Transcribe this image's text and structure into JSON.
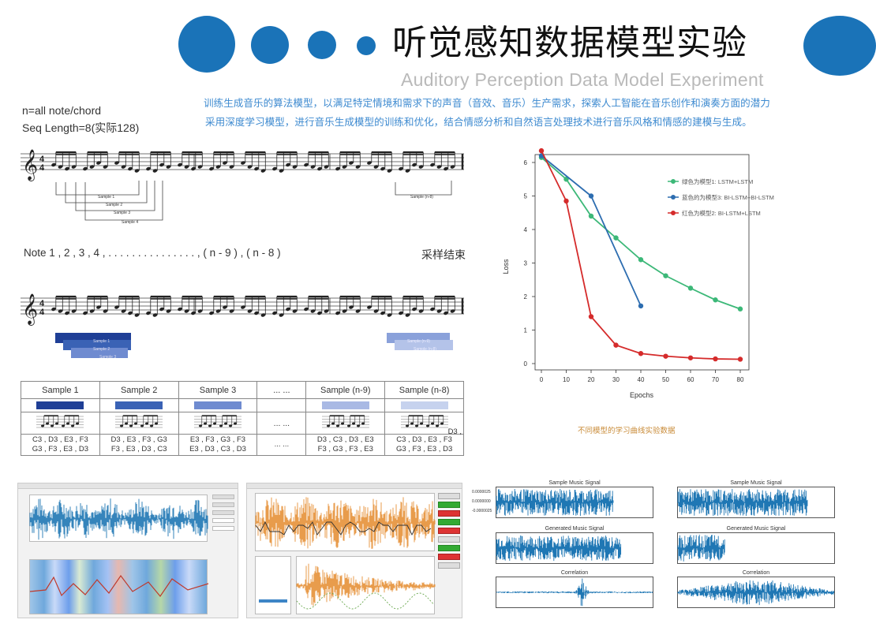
{
  "header": {
    "title": "听觉感知数据模型实验",
    "subtitle": "Auditory Perception Data Model Experiment",
    "intro_line1": "训练生成音乐的算法模型，以满足特定情境和需求下的声音（音效、音乐）生产需求，探索人工智能在音乐创作和演奏方面的潜力",
    "intro_line2": "采用深度学习模型，进行音乐生成模型的训练和优化，结合情感分析和自然语言处理技术进行音乐风格和情感的建模与生成。",
    "accent": "#1a73b8"
  },
  "sequence": {
    "note_type": "n=all note/chord",
    "seq_length": "Seq Length=8(实际128)",
    "sample_labels": [
      "Sample 1",
      "Sample 2",
      "Sample 3",
      "Sample 4"
    ],
    "sample_last": "Sample (n-8)",
    "note_line": "Note 1 , 2 , 3 , 4 , . . .   . . .   . . .   . . .   . . .  , ( n - 9 ) , ( n - 8 )",
    "end_label": "采样结束",
    "blocks_left": [
      "Sample 1",
      "Sample 2",
      "Sample 3"
    ],
    "blocks_right": [
      "Sample (n-9)",
      "Sample (n-8)"
    ]
  },
  "sample_table": {
    "headers": [
      "Sample 1",
      "Sample 2",
      "Sample 3",
      "... ...",
      "Sample (n-9)",
      "Sample (n-8)"
    ],
    "colors": [
      "#1f3f96",
      "#3a62b5",
      "#6f8bd0",
      "",
      "#a9b9e4",
      "#c6d2ee"
    ],
    "notes_row1": [
      "C3 , D3 , E3 , F3",
      "D3 , E3 , F3 , G3",
      "E3 , F3 , G3 , F3",
      "... ...",
      "D3 , C3 , D3 , E3",
      "C3 , D3 , E3 , F3"
    ],
    "notes_row2": [
      "G3 , F3 , E3 , D3",
      "F3 , E3 , D3 , C3",
      "E3 , D3 , C3 , D3",
      "",
      "F3 , G3 , F3 , E3",
      "G3 , F3 , E3 , D3"
    ],
    "extra_d3": "D3 ,",
    "dots": "... ..."
  },
  "chart_caption": "不同模型的学习曲线实验数据",
  "chart_data": {
    "type": "line",
    "title": "",
    "xlabel": "Epochs",
    "ylabel": "Loss",
    "xlim": [
      0,
      80
    ],
    "ylim": [
      0,
      6
    ],
    "xticks": [
      "0",
      "10",
      "20",
      "30",
      "40",
      "50",
      "60",
      "70",
      "80"
    ],
    "yticks": [
      "0",
      "1",
      "2",
      "3",
      "4",
      "5",
      "6"
    ],
    "legend_position": "top-right",
    "series": [
      {
        "name": "绿色为模型1: LSTM+LSTM",
        "color": "#3cb878",
        "x": [
          0,
          10,
          20,
          30,
          40,
          50,
          60,
          70,
          80
        ],
        "values": [
          6.15,
          5.5,
          4.4,
          3.75,
          3.1,
          2.62,
          2.25,
          1.9,
          1.63
        ]
      },
      {
        "name": "蓝色的为模型3: BI-LSTM+BI-LSTM",
        "color": "#2d6db0",
        "x": [
          0,
          20,
          40
        ],
        "values": [
          6.2,
          5.0,
          1.72
        ]
      },
      {
        "name": "红色为模型2: BI-LSTM+LSTM",
        "color": "#d52b2b",
        "x": [
          0,
          10,
          20,
          30,
          40,
          50,
          60,
          70,
          80
        ],
        "values": [
          6.35,
          4.85,
          1.4,
          0.55,
          0.3,
          0.22,
          0.17,
          0.14,
          0.13
        ]
      }
    ]
  },
  "signals": {
    "panel_titles": [
      "Sample Music Signal",
      "Sample Music Signal",
      "Generated Music Signal",
      "Generated Music Signal",
      "Correlation",
      "Correlation"
    ],
    "wave_color": "#1f77b4",
    "left_ticks": [
      "0.0000025",
      "0.0000000",
      "-0.0000025"
    ]
  }
}
